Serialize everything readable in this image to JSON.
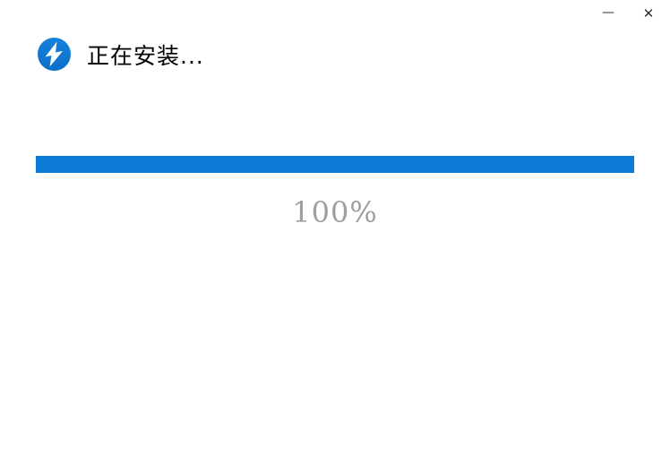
{
  "window": {
    "controls": {
      "minimize_glyph": "—",
      "close_glyph": "✕"
    }
  },
  "header": {
    "title": "正在安装...",
    "app_icon": "bandizip-lightning-icon"
  },
  "progress": {
    "value": 100,
    "percent_label": "100%"
  },
  "colors": {
    "progress_bar": "#0b79d8",
    "icon_circle": "#1078d7",
    "icon_bolt": "#ffffff",
    "percent_text": "#9e9e9e",
    "title_text": "#000000",
    "window_background": "#ffffff"
  }
}
